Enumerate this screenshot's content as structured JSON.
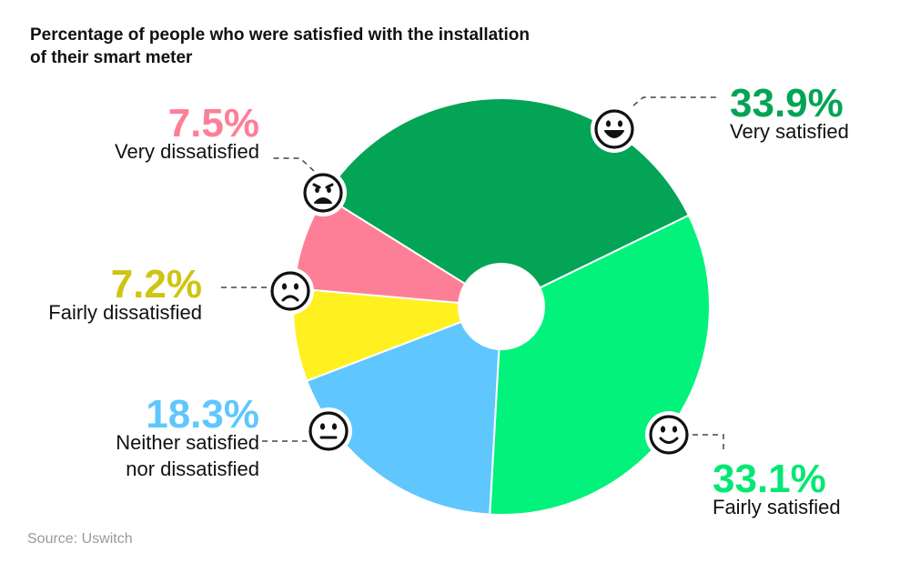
{
  "title": "Percentage of people who were satisfied with the installation of their smart meter",
  "source": "Source: Uswitch",
  "chart_data": {
    "type": "pie",
    "title": "Percentage of people who were satisfied with the installation of their smart meter",
    "unit": "%",
    "slices": [
      {
        "label": "Very satisfied",
        "lines": [
          "Very satisfied"
        ],
        "value": 33.9,
        "display": "33.9%",
        "color": "#03a455",
        "text_color": "#03a455",
        "face": "grin",
        "icon": "grinning-face-icon"
      },
      {
        "label": "Fairly satisfied",
        "lines": [
          "Fairly satisfied"
        ],
        "value": 33.1,
        "display": "33.1%",
        "color": "#02f27c",
        "text_color": "#03e874",
        "face": "smile",
        "icon": "smiling-face-icon"
      },
      {
        "label": "Neither satisfied nor dissatisfied",
        "lines": [
          "Neither satisfied",
          "nor dissatisfied"
        ],
        "value": 18.3,
        "display": "18.3%",
        "color": "#5fc7fd",
        "text_color": "#5fc7fd",
        "face": "neutral",
        "icon": "neutral-face-icon"
      },
      {
        "label": "Fairly dissatisfied",
        "lines": [
          "Fairly dissatisfied"
        ],
        "value": 7.2,
        "display": "7.2%",
        "color": "#fff11f",
        "text_color": "#cfc412",
        "face": "frown",
        "icon": "frowning-face-icon"
      },
      {
        "label": "Very dissatisfied",
        "lines": [
          "Very dissatisfied"
        ],
        "value": 7.5,
        "display": "7.5%",
        "color": "#fd7f97",
        "text_color": "#fd7f97",
        "face": "sad",
        "icon": "sad-face-icon"
      }
    ]
  }
}
